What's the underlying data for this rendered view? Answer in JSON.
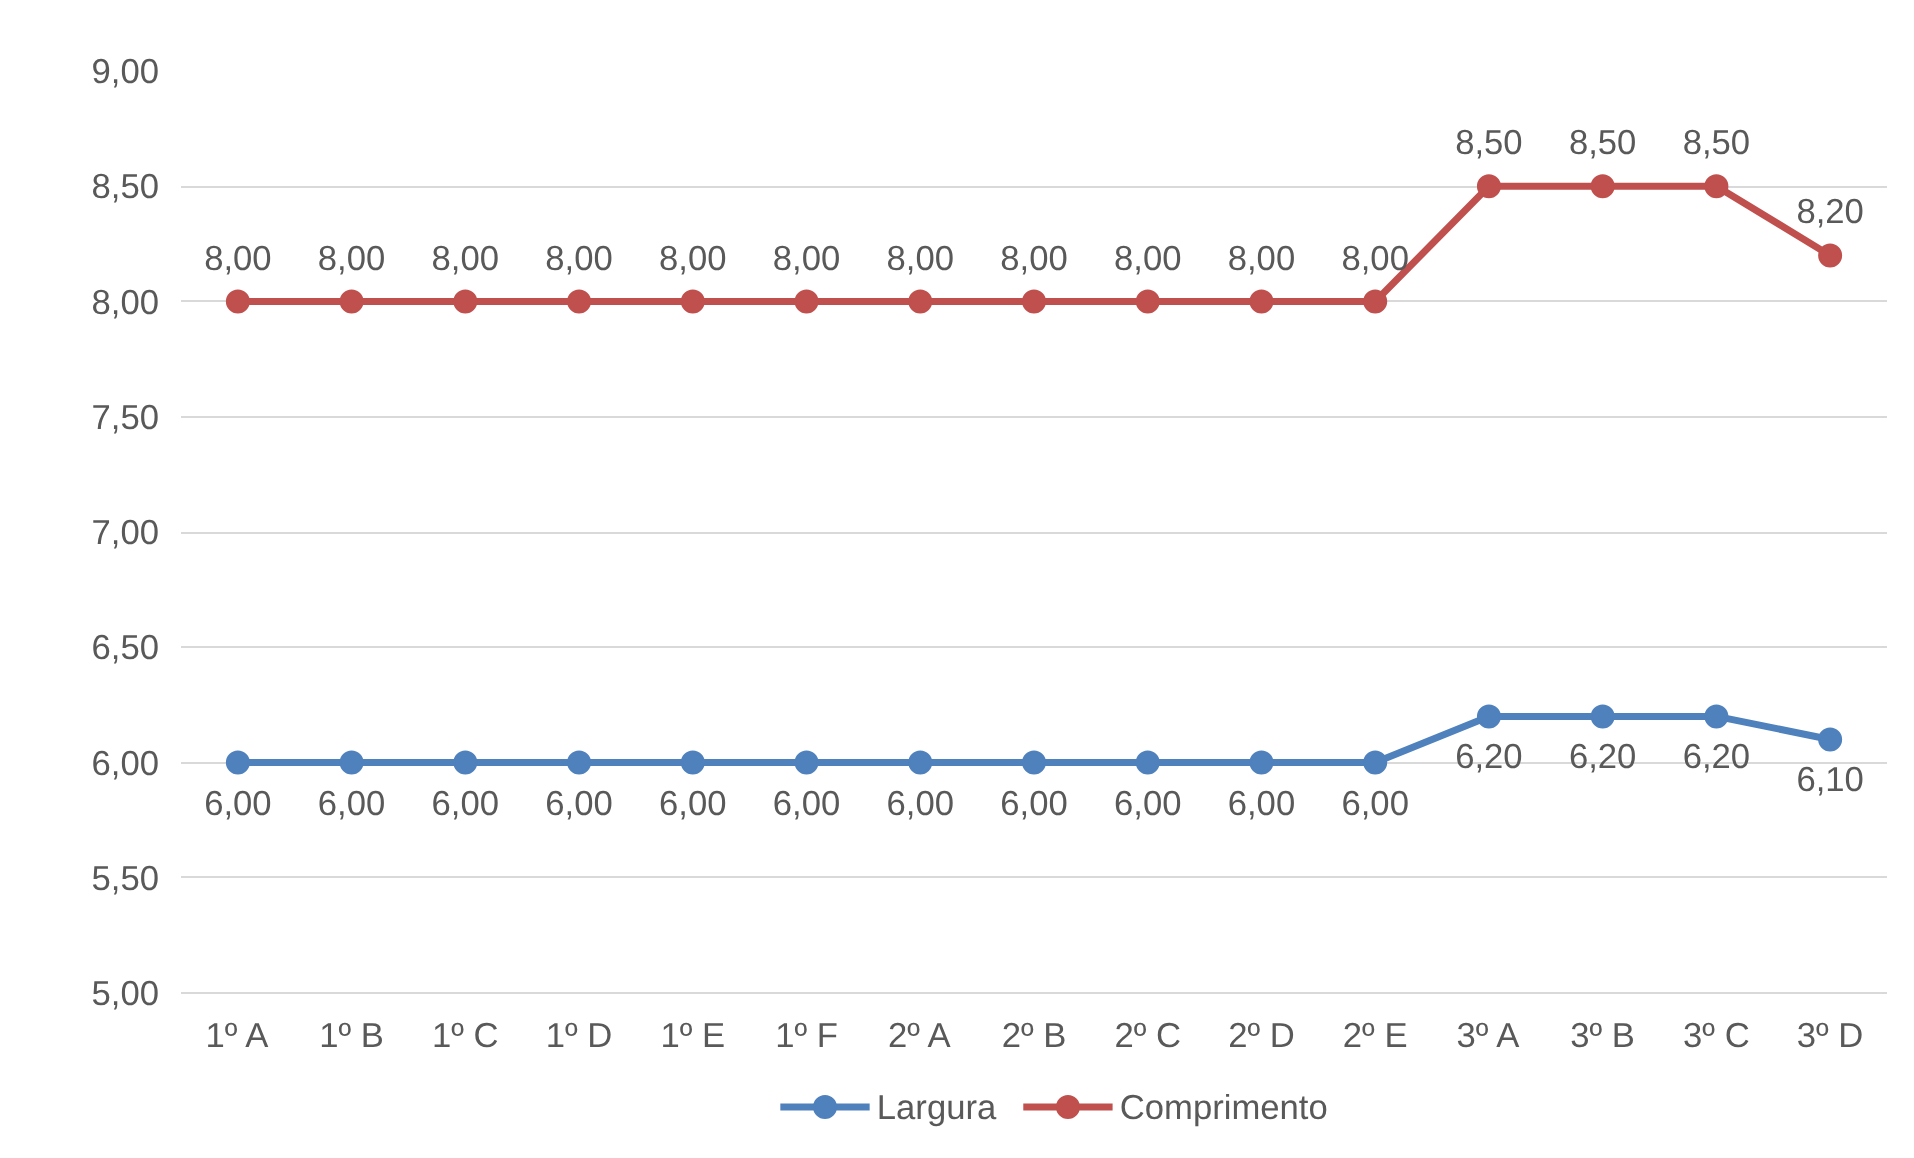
{
  "chart_data": {
    "type": "line",
    "categories": [
      "1º A",
      "1º B",
      "1º C",
      "1º D",
      "1º E",
      "1º F",
      "2º A",
      "2º B",
      "2º C",
      "2º D",
      "2º E",
      "3º A",
      "3º B",
      "3º C",
      "3º D"
    ],
    "series": [
      {
        "name": "Largura",
        "color": "#4f81bd",
        "values": [
          6,
          6,
          6,
          6,
          6,
          6,
          6,
          6,
          6,
          6,
          6,
          6.2,
          6.2,
          6.2,
          6.1
        ],
        "value_labels": [
          "6,00",
          "6,00",
          "6,00",
          "6,00",
          "6,00",
          "6,00",
          "6,00",
          "6,00",
          "6,00",
          "6,00",
          "6,00",
          "6,20",
          "6,20",
          "6,20",
          "6,10"
        ]
      },
      {
        "name": "Comprimento",
        "color": "#c0504d",
        "values": [
          8,
          8,
          8,
          8,
          8,
          8,
          8,
          8,
          8,
          8,
          8,
          8.5,
          8.5,
          8.5,
          8.2
        ],
        "value_labels": [
          "8,00",
          "8,00",
          "8,00",
          "8,00",
          "8,00",
          "8,00",
          "8,00",
          "8,00",
          "8,00",
          "8,00",
          "8,00",
          "8,50",
          "8,50",
          "8,50",
          "8,20"
        ]
      }
    ],
    "ylim": [
      5,
      9
    ],
    "yticks": [
      {
        "value": 5,
        "label": "5,00"
      },
      {
        "value": 5.5,
        "label": "5,50"
      },
      {
        "value": 6,
        "label": "6,00"
      },
      {
        "value": 6.5,
        "label": "6,50"
      },
      {
        "value": 7,
        "label": "7,00"
      },
      {
        "value": 7.5,
        "label": "7,50"
      },
      {
        "value": 8,
        "label": "8,00"
      },
      {
        "value": 8.5,
        "label": "8,50"
      },
      {
        "value": 9,
        "label": "9,00"
      }
    ],
    "grid": "y",
    "legend": "bottom",
    "marker": "circle",
    "line_style": "solid"
  }
}
